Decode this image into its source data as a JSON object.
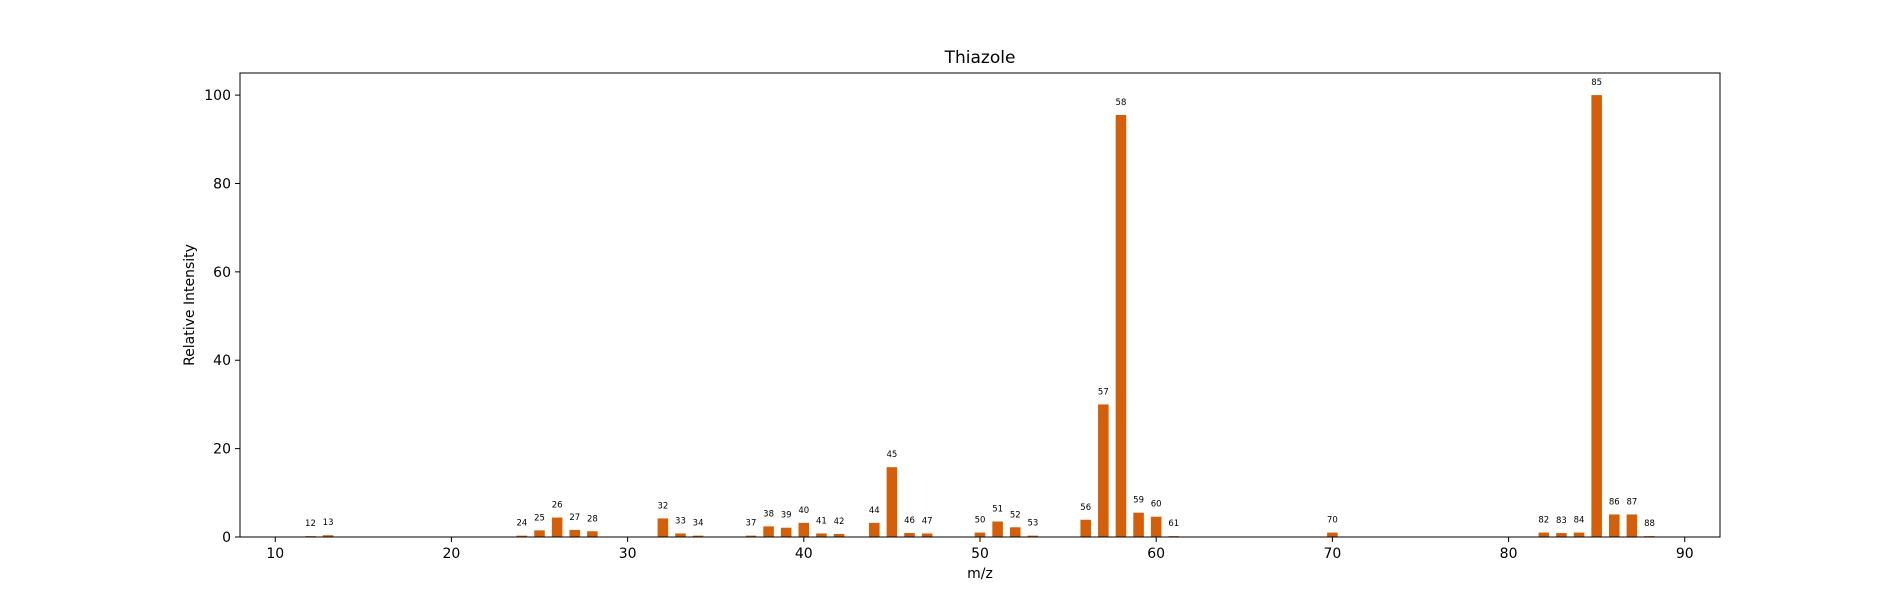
{
  "chart_data": {
    "type": "bar",
    "title": "Thiazole",
    "xlabel": "m/z",
    "ylabel": "Relative Intensity",
    "xlim": [
      8,
      92
    ],
    "ylim": [
      0,
      105
    ],
    "xticks": [
      10,
      20,
      30,
      40,
      50,
      60,
      70,
      80,
      90
    ],
    "yticks": [
      0,
      20,
      40,
      60,
      80,
      100
    ],
    "bar_color": "#d45f0a",
    "grid": false,
    "legend": "none",
    "x": [
      12,
      13,
      24,
      25,
      26,
      27,
      28,
      32,
      33,
      34,
      37,
      38,
      39,
      40,
      41,
      42,
      44,
      45,
      46,
      47,
      50,
      51,
      52,
      53,
      56,
      57,
      58,
      59,
      60,
      61,
      70,
      82,
      83,
      84,
      85,
      86,
      87,
      88
    ],
    "values": [
      0.2,
      0.4,
      0.3,
      1.5,
      4.4,
      1.6,
      1.3,
      4.2,
      0.8,
      0.3,
      0.3,
      2.4,
      2.1,
      3.2,
      0.8,
      0.7,
      3.2,
      15.8,
      0.9,
      0.8,
      1.0,
      3.5,
      2.2,
      0.3,
      3.9,
      30.0,
      95.5,
      5.5,
      4.6,
      0.2,
      1.0,
      1.0,
      0.9,
      1.0,
      100.0,
      5.1,
      5.1,
      0.2
    ]
  }
}
